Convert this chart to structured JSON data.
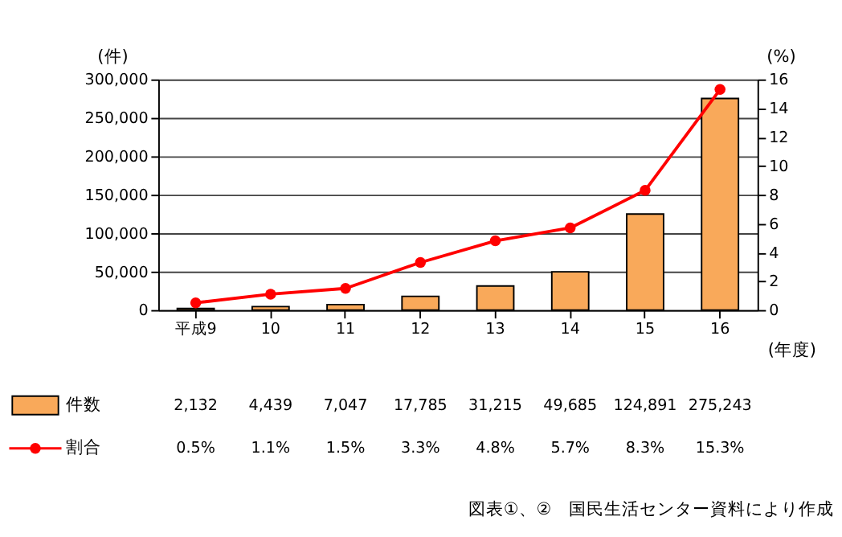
{
  "chart_data": {
    "type": "bar",
    "categories": [
      "平成9",
      "10",
      "11",
      "12",
      "13",
      "14",
      "15",
      "16"
    ],
    "xlabel": "(年度)",
    "ylabel": "(件)",
    "y2label": "(%)",
    "series": [
      {
        "name": "件数",
        "color": "#f9a95a",
        "values": [
          2132,
          4439,
          7047,
          17785,
          31215,
          49685,
          124891,
          275243
        ],
        "value_labels": [
          "2,132",
          "4,439",
          "7,047",
          "17,785",
          "31,215",
          "49,685",
          "124,891",
          "275,243"
        ]
      },
      {
        "name": "割合",
        "type": "line",
        "axis": "y2",
        "color": "#ff0000",
        "marker": "circle",
        "values": [
          0.5,
          1.1,
          1.5,
          3.3,
          4.8,
          5.7,
          8.3,
          15.3
        ],
        "value_labels": [
          "0.5%",
          "1.1%",
          "1.5%",
          "3.3%",
          "4.8%",
          "5.7%",
          "8.3%",
          "15.3%"
        ]
      }
    ],
    "ylim": [
      0,
      300000
    ],
    "yticks": [
      0,
      {
        "value": 50000,
        "label": "50,000"
      },
      {
        "value": 100000,
        "label": "100,000"
      },
      {
        "value": 150000,
        "label": "150,000"
      },
      {
        "value": 200000,
        "label": "200,000"
      },
      {
        "value": 250000,
        "label": "250,000"
      },
      {
        "value": 300000,
        "label": "300,000"
      }
    ],
    "y2lim": [
      0,
      16
    ],
    "y2ticks": [
      0,
      2,
      4,
      6,
      8,
      10,
      12,
      14,
      16
    ],
    "grid": "y",
    "legend": "bottom",
    "data_labels": true,
    "annotations": [
      "図表①、②　国民生活センター資料により作成"
    ]
  }
}
